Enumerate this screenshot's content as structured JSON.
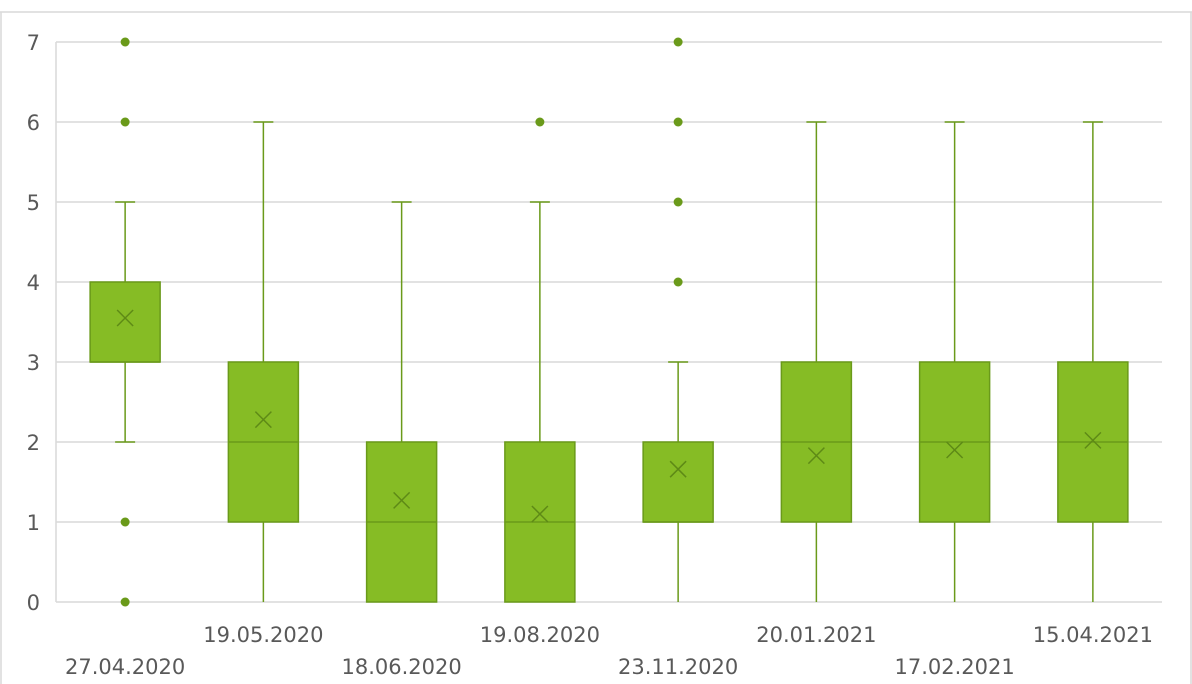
{
  "chart_data": {
    "type": "box",
    "title": "",
    "xlabel": "",
    "ylabel": "",
    "ylim": [
      0,
      7
    ],
    "yticks": [
      0,
      1,
      2,
      3,
      4,
      5,
      6,
      7
    ],
    "grid": true,
    "legend": "none",
    "colors": {
      "box": "#86bc25",
      "line": "#6a9a1a"
    },
    "categories": [
      "27.04.2020",
      "19.05.2020",
      "18.06.2020",
      "19.08.2020",
      "23.11.2020",
      "20.01.2021",
      "17.02.2021",
      "15.04.2021"
    ],
    "boxes": [
      {
        "min": 2,
        "q1": 3,
        "median": 3,
        "q3": 4,
        "max": 5,
        "mean": 3.55,
        "outliers": [
          0,
          1,
          6,
          7
        ]
      },
      {
        "min": 0,
        "q1": 1,
        "median": 2,
        "q3": 3,
        "max": 6,
        "mean": 2.28,
        "outliers": []
      },
      {
        "min": 0,
        "q1": 0,
        "median": 1,
        "q3": 2,
        "max": 5,
        "mean": 1.27,
        "outliers": []
      },
      {
        "min": 0,
        "q1": 0,
        "median": 1,
        "q3": 2,
        "max": 5,
        "mean": 1.1,
        "outliers": [
          6
        ]
      },
      {
        "min": 0,
        "q1": 1,
        "median": 1,
        "q3": 2,
        "max": 3,
        "mean": 1.66,
        "outliers": [
          4,
          5,
          6,
          7
        ]
      },
      {
        "min": 0,
        "q1": 1,
        "median": 2,
        "q3": 3,
        "max": 6,
        "mean": 1.83,
        "outliers": []
      },
      {
        "min": 0,
        "q1": 1,
        "median": 2,
        "q3": 3,
        "max": 6,
        "mean": 1.9,
        "outliers": []
      },
      {
        "min": 0,
        "q1": 1,
        "median": 2,
        "q3": 3,
        "max": 6,
        "mean": 2.02,
        "outliers": []
      }
    ]
  }
}
